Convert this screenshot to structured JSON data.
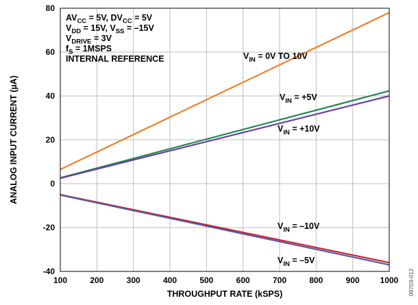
{
  "chart_data": {
    "type": "line",
    "xlabel": "THROUGHPUT RATE (kSPS)",
    "ylabel": "ANALOG INPUT CURRENT (µA)",
    "xlim": [
      100,
      1000
    ],
    "ylim": [
      -40,
      80
    ],
    "xticks": [
      100,
      200,
      300,
      400,
      500,
      600,
      700,
      800,
      900,
      1000
    ],
    "yticks": [
      -40,
      -20,
      0,
      20,
      40,
      60,
      80
    ],
    "grid": true,
    "conditions": [
      [
        {
          "t": "AV"
        },
        {
          "t": "CC",
          "sub": true
        },
        {
          "t": " = 5V, DV"
        },
        {
          "t": "CC",
          "sub": true
        },
        {
          "t": " = 5V"
        }
      ],
      [
        {
          "t": "V"
        },
        {
          "t": "DD",
          "sub": true
        },
        {
          "t": " = 15V, V"
        },
        {
          "t": "SS",
          "sub": true
        },
        {
          "t": " = –15V"
        }
      ],
      [
        {
          "t": "V"
        },
        {
          "t": "DRIVE",
          "sub": true
        },
        {
          "t": " = 3V"
        }
      ],
      [
        {
          "t": "f"
        },
        {
          "t": "S",
          "sub": true
        },
        {
          "t": " = 1MSPS"
        }
      ],
      [
        {
          "t": "INTERNAL REFERENCE"
        }
      ]
    ],
    "series": [
      {
        "label_main": "V",
        "label_sub": "IN",
        "label_rest": " = 0V TO 10V",
        "color": "#f07f2a",
        "x": [
          100,
          1000
        ],
        "y": [
          6.5,
          78
        ]
      },
      {
        "label_main": "V",
        "label_sub": "IN",
        "label_rest": " = +5V",
        "color": "#1f8a4e",
        "x": [
          100,
          1000
        ],
        "y": [
          2.7,
          42.3
        ]
      },
      {
        "label_main": "V",
        "label_sub": "IN",
        "label_rest": " = +10V",
        "color": "#6a3fa0",
        "x": [
          100,
          1000
        ],
        "y": [
          2.5,
          40
        ]
      },
      {
        "label_main": "V",
        "label_sub": "IN",
        "label_rest": " = –10V",
        "color": "#d1212f",
        "x": [
          100,
          1000
        ],
        "y": [
          -5,
          -36
        ]
      },
      {
        "label_main": "V",
        "label_sub": "IN",
        "label_rest": " = –5V",
        "color": "#4f5fa8",
        "x": [
          100,
          1000
        ],
        "y": [
          -5.2,
          -37
        ]
      }
    ],
    "figure_id": "09703-012"
  }
}
